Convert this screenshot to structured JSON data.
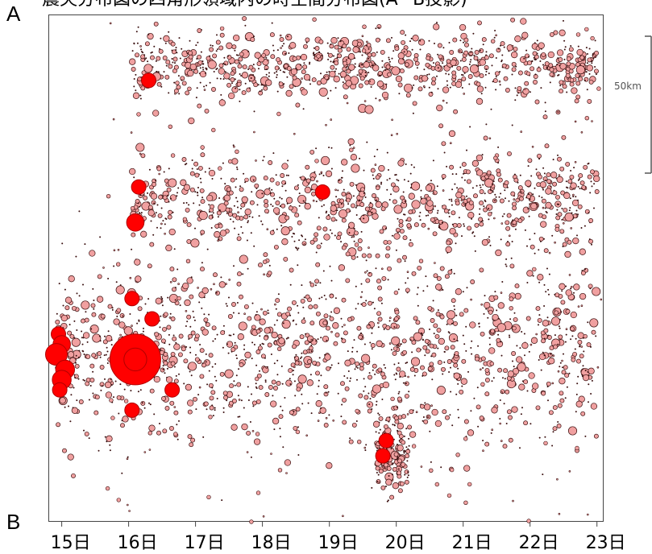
{
  "header": {
    "title_visible": "震央分布図の四角形領域内の時空間分布図(A−B投影)",
    "label_a": "A",
    "label_b": "B"
  },
  "scale": {
    "label": "50km"
  },
  "chart_data": {
    "type": "scatter",
    "x_axis": {
      "ticks": [
        "15日",
        "16日",
        "17日",
        "18日",
        "19日",
        "20日",
        "21日",
        "22日",
        "23日"
      ],
      "tick_values": [
        15,
        16,
        17,
        18,
        19,
        20,
        21,
        22,
        23
      ],
      "range": [
        14.8,
        23.1
      ]
    },
    "y_axis": {
      "range": [
        0,
        1
      ],
      "orientation": "A at top, B at bottom"
    },
    "colors": {
      "small_fill": "#f0a0a0",
      "small_stroke": "#3a0f0f",
      "large_fill": "#ff0000",
      "large_stroke": "#b00000",
      "axis": "#444444"
    },
    "bands": [
      {
        "name": "upper",
        "y_center": 0.1,
        "y_spread": 0.035,
        "x_start": 16.05,
        "x_end": 23.0,
        "density": 1.0
      },
      {
        "name": "middle",
        "y_center": 0.37,
        "y_spread": 0.05,
        "x_start": 16.05,
        "x_end": 23.0,
        "density": 1.0
      },
      {
        "name": "lower",
        "y_center": 0.66,
        "y_spread": 0.09,
        "x_start": 14.9,
        "x_end": 23.0,
        "density": 1.6
      },
      {
        "name": "cluster_19",
        "y_center": 0.86,
        "y_spread": 0.035,
        "x_start": 19.7,
        "x_end": 20.2,
        "density": 0.2
      }
    ],
    "large_events": [
      {
        "x": 16.3,
        "y": 0.13,
        "mag": 4.0
      },
      {
        "x": 16.15,
        "y": 0.34,
        "mag": 4.0
      },
      {
        "x": 16.1,
        "y": 0.41,
        "mag": 4.2
      },
      {
        "x": 18.9,
        "y": 0.35,
        "mag": 4.0
      },
      {
        "x": 16.05,
        "y": 0.56,
        "mag": 4.0
      },
      {
        "x": 16.35,
        "y": 0.6,
        "mag": 4.0
      },
      {
        "x": 14.95,
        "y": 0.63,
        "mag": 4.0
      },
      {
        "x": 15.0,
        "y": 0.65,
        "mag": 4.2
      },
      {
        "x": 14.92,
        "y": 0.67,
        "mag": 4.5
      },
      {
        "x": 15.05,
        "y": 0.7,
        "mag": 4.3
      },
      {
        "x": 15.0,
        "y": 0.72,
        "mag": 4.3
      },
      {
        "x": 14.97,
        "y": 0.74,
        "mag": 4.0
      },
      {
        "x": 16.1,
        "y": 0.68,
        "mag": 6.5
      },
      {
        "x": 16.65,
        "y": 0.74,
        "mag": 4.0
      },
      {
        "x": 16.05,
        "y": 0.78,
        "mag": 4.0
      },
      {
        "x": 19.85,
        "y": 0.84,
        "mag": 4.0
      },
      {
        "x": 19.8,
        "y": 0.87,
        "mag": 4.0
      }
    ]
  }
}
